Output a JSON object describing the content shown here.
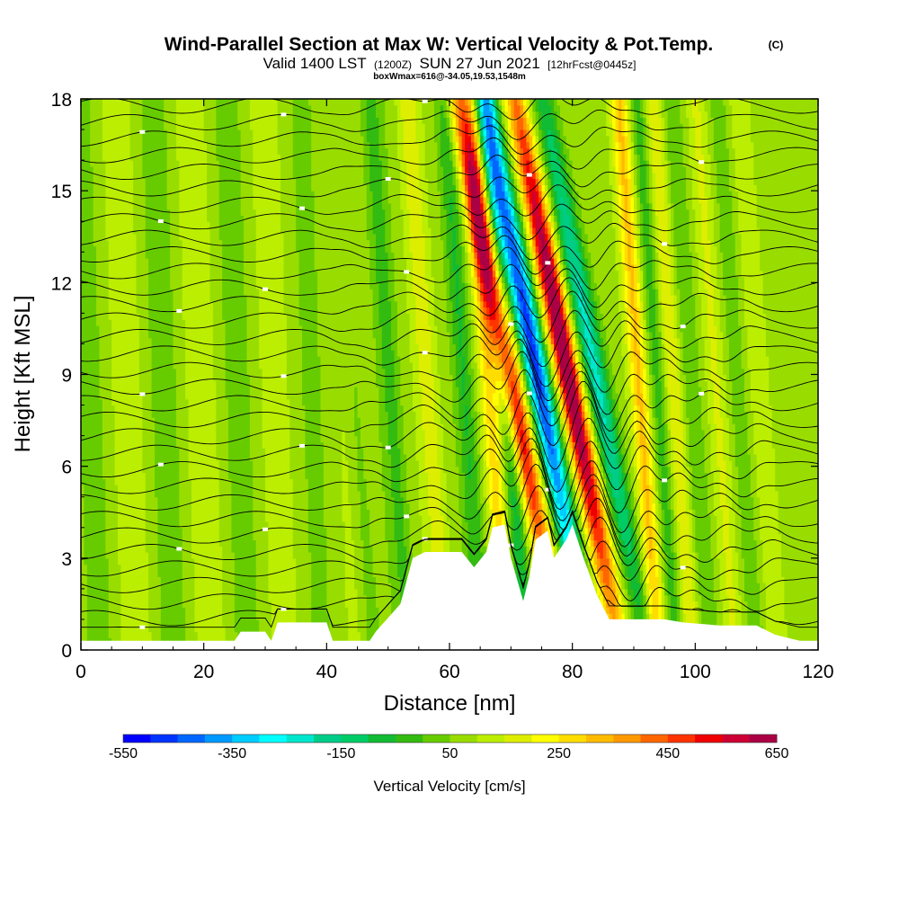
{
  "chart_data": {
    "type": "heatmap",
    "title": "Wind-Parallel Section at Max W: Vertical Velocity & Pot.Temp.",
    "copyright": "(C)",
    "subtitle_valid": "Valid 1400 LST",
    "subtitle_z": "(1200Z)",
    "subtitle_date": "SUN 27 Jun 2021",
    "subtitle_fcst": "[12hrFcst@0445z]",
    "subtitle_box": "boxWmax=616@-34.05,19.53,1548m",
    "xlabel": "Distance [nm]",
    "ylabel": "Height [Kft MSL]",
    "xlim": [
      0,
      120
    ],
    "ylim": [
      0,
      18
    ],
    "xticks": [
      "0",
      "20",
      "40",
      "60",
      "80",
      "100",
      "120"
    ],
    "yticks": [
      "0",
      "3",
      "6",
      "9",
      "12",
      "15",
      "18"
    ],
    "colorbar": {
      "label": "Vertical Velocity [cm/s]",
      "range": [
        -550,
        650
      ],
      "step": 50,
      "tick_labels": [
        "-550",
        "-350",
        "-150",
        "50",
        "250",
        "450",
        "650"
      ]
    },
    "max_w_cm_s": 616,
    "terrain": [
      [
        0,
        0.3
      ],
      [
        10,
        0.3
      ],
      [
        25,
        0.3
      ],
      [
        26,
        0.6
      ],
      [
        30,
        0.6
      ],
      [
        31,
        0.3
      ],
      [
        32,
        0.9
      ],
      [
        40,
        0.9
      ],
      [
        41,
        0.3
      ],
      [
        47,
        0.3
      ],
      [
        48,
        0.6
      ],
      [
        52,
        1.5
      ],
      [
        54,
        3.0
      ],
      [
        56,
        3.2
      ],
      [
        62,
        3.2
      ],
      [
        64,
        2.7
      ],
      [
        66,
        3.2
      ],
      [
        67,
        4.0
      ],
      [
        69,
        4.1
      ],
      [
        70,
        3.0
      ],
      [
        72,
        1.6
      ],
      [
        73,
        2.4
      ],
      [
        74,
        3.6
      ],
      [
        76,
        3.9
      ],
      [
        77,
        3.0
      ],
      [
        79,
        3.6
      ],
      [
        80,
        4.1
      ],
      [
        82,
        2.9
      ],
      [
        84,
        1.8
      ],
      [
        86,
        1.0
      ],
      [
        95,
        1.0
      ],
      [
        98,
        0.9
      ],
      [
        104,
        0.8
      ],
      [
        110,
        0.8
      ],
      [
        113,
        0.5
      ],
      [
        117,
        0.3
      ],
      [
        120,
        0.3
      ]
    ],
    "updrafts": [
      {
        "x": 84,
        "peak": 616
      },
      {
        "x": 74.5,
        "peak": 520
      },
      {
        "x": 92.5,
        "peak": 230
      },
      {
        "x": 68,
        "peak": 190
      },
      {
        "x": 98,
        "peak": 120
      },
      {
        "x": 105,
        "peak": 80
      },
      {
        "x": 58,
        "peak": 90
      },
      {
        "x": 112,
        "peak": 70
      }
    ],
    "downdrafts": [
      {
        "x": 79,
        "peak": -550
      },
      {
        "x": 88.5,
        "peak": -300
      },
      {
        "x": 71,
        "peak": -180
      },
      {
        "x": 64,
        "peak": -120
      },
      {
        "x": 95.5,
        "peak": -110
      },
      {
        "x": 52,
        "peak": -80
      },
      {
        "x": 101,
        "peak": -80
      },
      {
        "x": 46,
        "peak": -60
      },
      {
        "x": 108.5,
        "peak": -60
      }
    ],
    "pot_temp_contours": 33
  }
}
